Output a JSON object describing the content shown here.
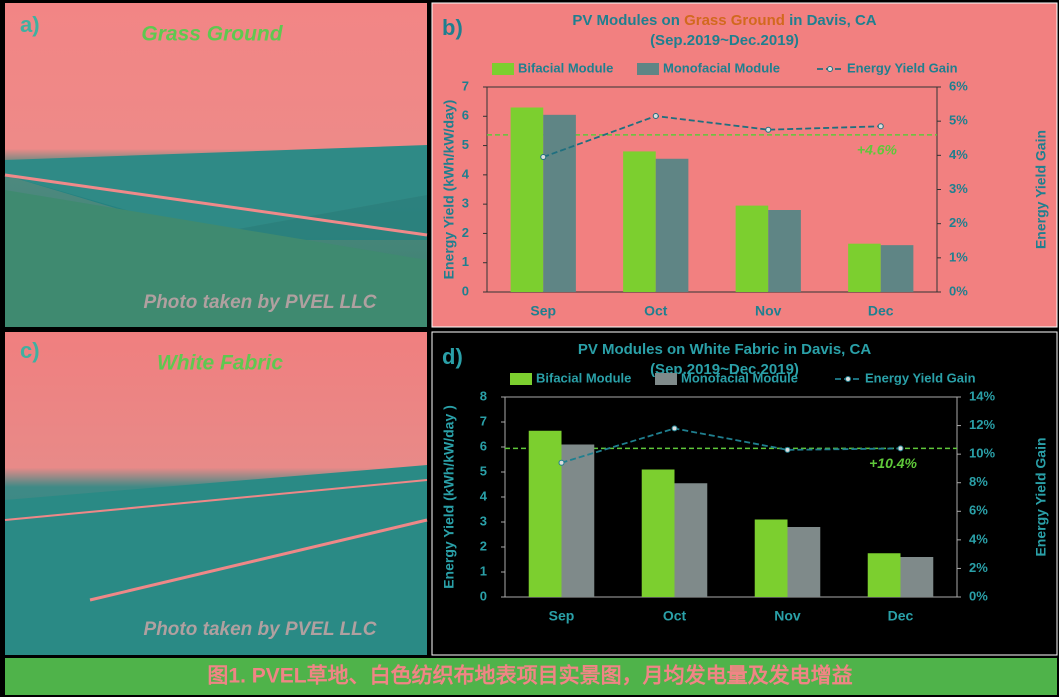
{
  "panels": [
    {
      "label": "a)",
      "title": "Grass Ground",
      "credit": "Photo taken by PVEL LLC"
    },
    {
      "label": "c)",
      "title": "White Fabric",
      "credit": "Photo taken by PVEL LLC"
    }
  ],
  "chart_data": [
    {
      "type": "bar",
      "label": "b)",
      "title": [
        "PV Modules on ",
        "Grass Ground",
        " in Davis, CA"
      ],
      "title_colors": [
        "#1f7f8f",
        "#d2691e",
        "#1f7f8f"
      ],
      "subtitle": "(Sep.2019~Dec.2019)",
      "categories": [
        "Sep",
        "Oct",
        "Nov",
        "Dec"
      ],
      "series": [
        {
          "name": "Bifacial Module",
          "color": "#7ccf2f",
          "values": [
            6.3,
            4.8,
            2.95,
            1.65
          ]
        },
        {
          "name": "Monofacial Module",
          "color": "#5f8585",
          "values": [
            6.05,
            4.55,
            2.8,
            1.6
          ]
        },
        {
          "name": "Energy Yield Gain",
          "color": "#1f6f7f",
          "axis": "y2",
          "values": [
            3.95,
            5.15,
            4.75,
            4.85
          ]
        }
      ],
      "ylabel": "Energy Yield (kWh/kW/day)",
      "y2label": "Energy Yield Gain",
      "ylim": [
        0,
        7
      ],
      "yticks": [
        0,
        1,
        2,
        3,
        4,
        5,
        6,
        7
      ],
      "y2lim": [
        0,
        6
      ],
      "y2ticks": [
        {
          "value": 0,
          "label": "0%"
        },
        {
          "value": 1,
          "label": "1%"
        },
        {
          "value": 2,
          "label": "2%"
        },
        {
          "value": 3,
          "label": "3%"
        },
        {
          "value": 4,
          "label": "4%"
        },
        {
          "value": 5,
          "label": "5%"
        },
        {
          "value": 6,
          "label": "6%"
        }
      ],
      "reference": {
        "value": 4.6,
        "label": "+4.6%",
        "axis": "y2",
        "color": "#5fc83a"
      },
      "background": "#f28080",
      "text_color": "#1f7f8f"
    },
    {
      "type": "bar",
      "label": "d)",
      "title": [
        "PV Modules on White Fabric in Davis, CA"
      ],
      "title_colors": [
        "#2aa0a8"
      ],
      "subtitle": "(Sep.2019~Dec.2019)",
      "categories": [
        "Sep",
        "Oct",
        "Nov",
        "Dec"
      ],
      "series": [
        {
          "name": "Bifacial Module",
          "color": "#7ccf2f",
          "values": [
            6.65,
            5.1,
            3.1,
            1.75
          ]
        },
        {
          "name": "Monofacial Module",
          "color": "#7f8a8a",
          "values": [
            6.1,
            4.55,
            2.8,
            1.6
          ]
        },
        {
          "name": "Energy Yield Gain",
          "color": "#1f7f8f",
          "axis": "y2",
          "values": [
            9.4,
            11.8,
            10.3,
            10.4
          ]
        }
      ],
      "ylabel": "Energy Yield (kWh/kW/day )",
      "y2label": "Energy Yield Gain",
      "ylim": [
        0,
        8
      ],
      "yticks": [
        0,
        1,
        2,
        3,
        4,
        5,
        6,
        7,
        8
      ],
      "y2lim": [
        0,
        14
      ],
      "y2ticks": [
        {
          "value": 0,
          "label": "0%"
        },
        {
          "value": 2,
          "label": "2%"
        },
        {
          "value": 4,
          "label": "4%"
        },
        {
          "value": 6,
          "label": "6%"
        },
        {
          "value": 8,
          "label": "8%"
        },
        {
          "value": 10,
          "label": "10%"
        },
        {
          "value": 12,
          "label": "12%"
        },
        {
          "value": 14,
          "label": "14%"
        }
      ],
      "reference": {
        "value": 10.4,
        "label": "+10.4%",
        "axis": "y2",
        "color": "#5fc83a"
      },
      "background": "#000000",
      "text_color": "#2aa0a8"
    }
  ],
  "caption": "图1. PVEL草地、白色纺织布地表项目实景图，月均发电量及发电增益"
}
